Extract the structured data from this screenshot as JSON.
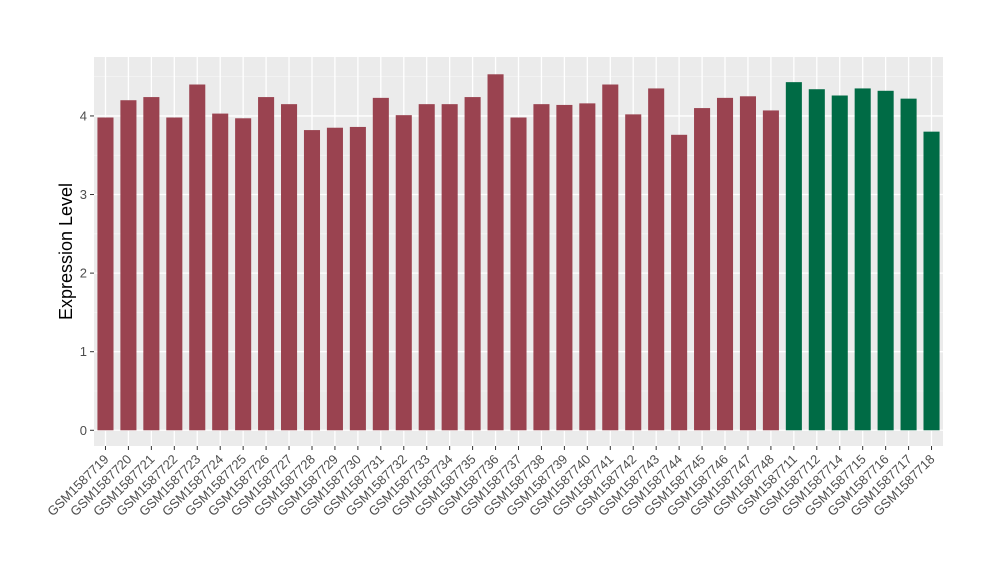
{
  "chart_data": {
    "type": "bar",
    "title": "",
    "xlabel": "",
    "ylabel": "Expression Level",
    "ylim": [
      -0.2,
      4.75
    ],
    "yticks": [
      0,
      1,
      2,
      3,
      4
    ],
    "grid": true,
    "legend": "none",
    "colors": {
      "group1": "#9a4350",
      "group2": "#006b45",
      "panel": "#ebebeb",
      "grid_major": "#ffffff",
      "grid_minor": "#f5f5f5"
    },
    "categories": [
      "GSM1587719",
      "GSM1587720",
      "GSM1587721",
      "GSM1587722",
      "GSM1587723",
      "GSM1587724",
      "GSM1587725",
      "GSM1587726",
      "GSM1587727",
      "GSM1587728",
      "GSM1587729",
      "GSM1587730",
      "GSM1587731",
      "GSM1587732",
      "GSM1587733",
      "GSM1587734",
      "GSM1587735",
      "GSM1587736",
      "GSM1587737",
      "GSM1587738",
      "GSM1587739",
      "GSM1587740",
      "GSM1587741",
      "GSM1587742",
      "GSM1587743",
      "GSM1587744",
      "GSM1587745",
      "GSM1587746",
      "GSM1587747",
      "GSM1587748",
      "GSM1587711",
      "GSM1587712",
      "GSM1587714",
      "GSM1587715",
      "GSM1587716",
      "GSM1587717",
      "GSM1587718"
    ],
    "values": [
      3.98,
      4.2,
      4.24,
      3.98,
      4.4,
      4.03,
      3.97,
      4.24,
      4.15,
      3.82,
      3.85,
      3.86,
      4.23,
      4.01,
      4.15,
      4.15,
      4.24,
      4.53,
      3.98,
      4.15,
      4.14,
      4.16,
      4.4,
      4.02,
      4.35,
      3.76,
      4.1,
      4.23,
      4.25,
      4.07,
      4.43,
      4.34,
      4.26,
      4.35,
      4.32,
      4.22,
      3.8
    ],
    "groups": [
      "group1",
      "group1",
      "group1",
      "group1",
      "group1",
      "group1",
      "group1",
      "group1",
      "group1",
      "group1",
      "group1",
      "group1",
      "group1",
      "group1",
      "group1",
      "group1",
      "group1",
      "group1",
      "group1",
      "group1",
      "group1",
      "group1",
      "group1",
      "group1",
      "group1",
      "group1",
      "group1",
      "group1",
      "group1",
      "group1",
      "group2",
      "group2",
      "group2",
      "group2",
      "group2",
      "group2",
      "group2"
    ]
  }
}
